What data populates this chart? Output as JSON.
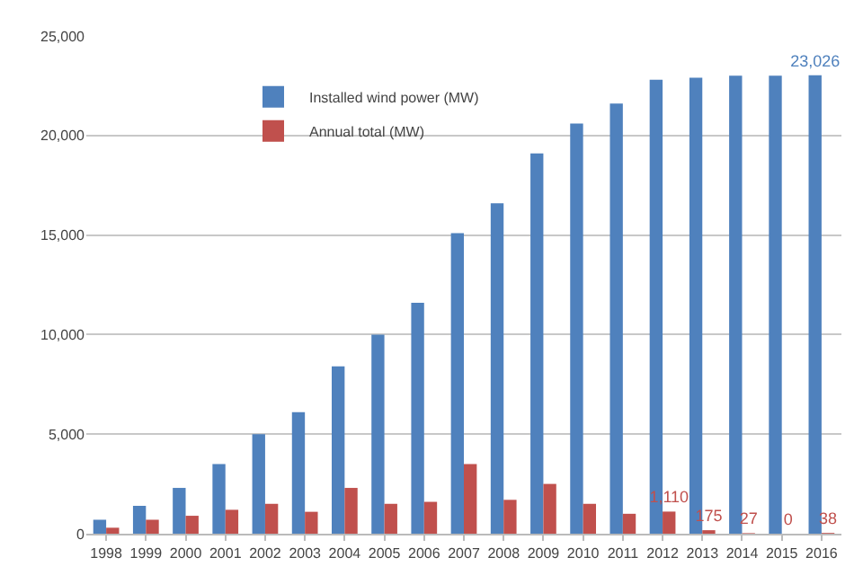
{
  "chart_data": {
    "type": "bar",
    "categories": [
      "1998",
      "1999",
      "2000",
      "2001",
      "2002",
      "2003",
      "2004",
      "2005",
      "2006",
      "2007",
      "2008",
      "2009",
      "2010",
      "2011",
      "2012",
      "2013",
      "2014",
      "2015",
      "2016"
    ],
    "series": [
      {
        "name": "Installed wind power (MW)",
        "color": "#4f81bd",
        "values": [
          700,
          1400,
          2300,
          3500,
          5000,
          6100,
          8400,
          10000,
          11600,
          15100,
          16600,
          19100,
          20600,
          21600,
          22800,
          22900,
          23000,
          23000,
          23026
        ],
        "value_labels": [
          null,
          null,
          null,
          null,
          null,
          null,
          null,
          null,
          null,
          null,
          null,
          null,
          null,
          null,
          null,
          null,
          null,
          null,
          "23,026"
        ]
      },
      {
        "name": "Annual total (MW)",
        "color": "#c0504d",
        "values": [
          300,
          700,
          900,
          1200,
          1500,
          1100,
          2300,
          1500,
          1600,
          3500,
          1700,
          2500,
          1500,
          1000,
          1110,
          175,
          27,
          0,
          38
        ],
        "value_labels": [
          null,
          null,
          null,
          null,
          null,
          null,
          null,
          null,
          null,
          null,
          null,
          null,
          null,
          null,
          "1,110",
          "175",
          "27",
          "0",
          "38"
        ]
      }
    ],
    "ylim": [
      0,
      25000
    ],
    "yticks": [
      {
        "value": 0,
        "label": "0"
      },
      {
        "value": 5000,
        "label": "5,000"
      },
      {
        "value": 10000,
        "label": "10,000"
      },
      {
        "value": 15000,
        "label": "15,000"
      },
      {
        "value": 20000,
        "label": "20,000"
      },
      {
        "value": 25000,
        "label": "25,000"
      }
    ],
    "grid": "y",
    "legend": "top left"
  }
}
